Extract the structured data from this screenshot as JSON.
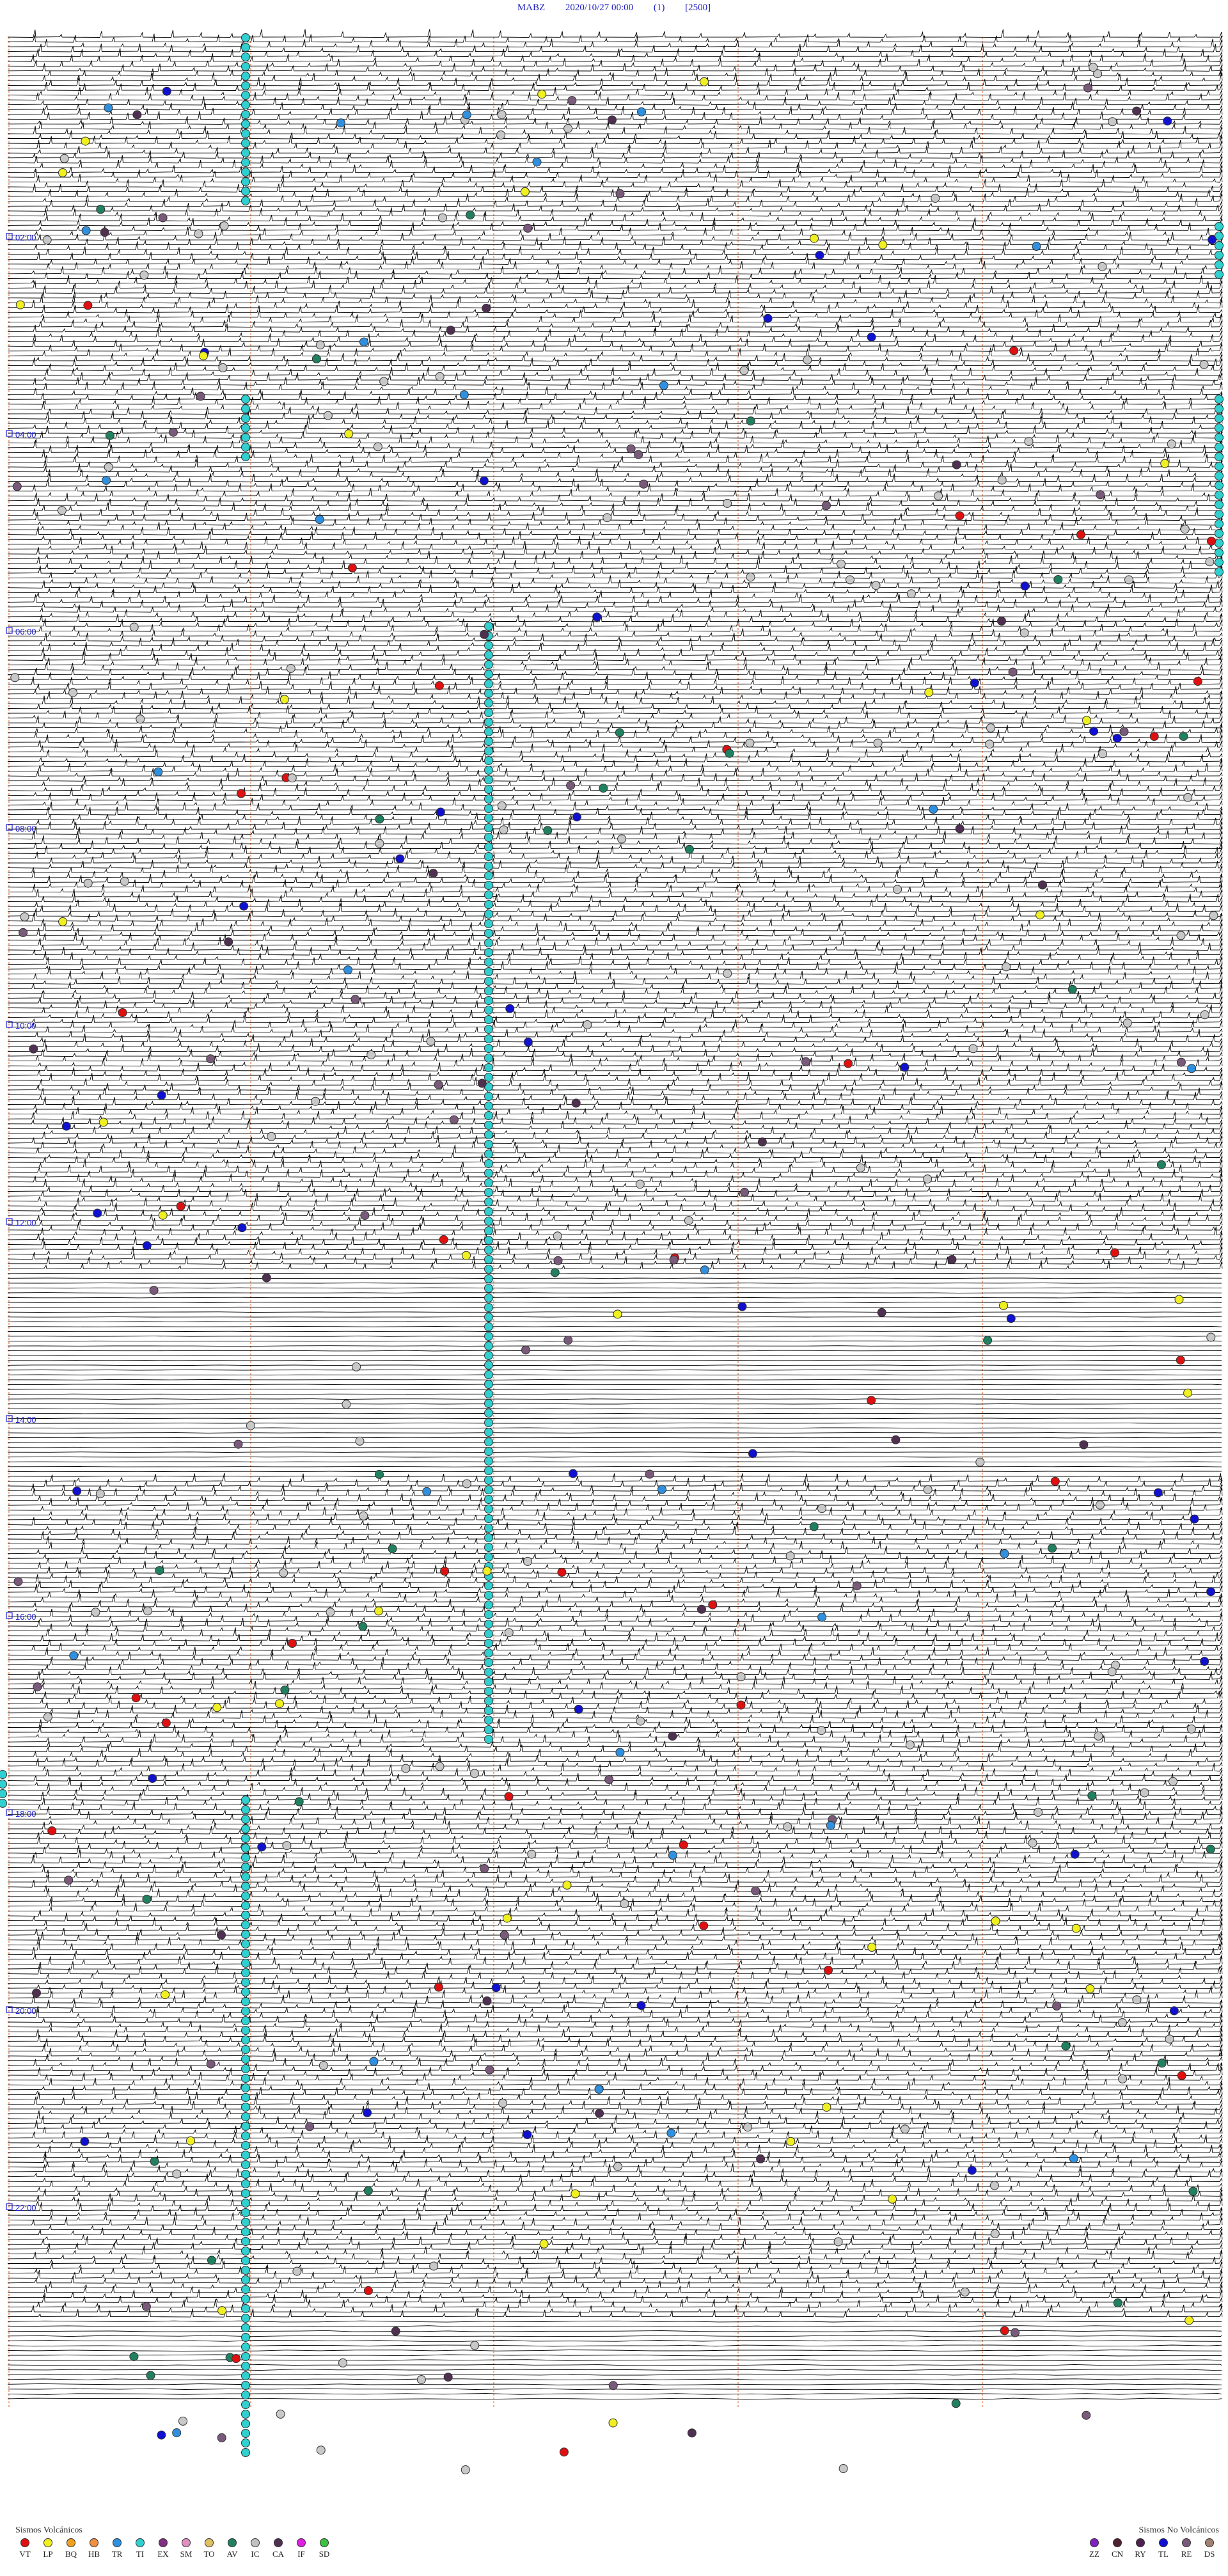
{
  "header": {
    "station": "MABZ",
    "datetime": "2020/10/27 00:00",
    "channel": "(1)",
    "scale": "[2500]"
  },
  "hour_labels": [
    "02:00",
    "04:00",
    "06:00",
    "08:00",
    "10:00",
    "12:00",
    "14:00",
    "16:00",
    "18:00",
    "20:00",
    "22:00"
  ],
  "colors": {
    "trace": "#000000",
    "minute_marker": "#e06020",
    "hour_label": "#1a1ad0",
    "cyan_marker": "#30d0d0",
    "grey_marker": "#c8c8c8"
  },
  "legend_volcanic": {
    "title": "Sismos Volcánicos",
    "items": [
      {
        "code": "VT",
        "color": "#e01010"
      },
      {
        "code": "LP",
        "color": "#f0f020"
      },
      {
        "code": "BQ",
        "color": "#f0a020"
      },
      {
        "code": "HB",
        "color": "#f09040"
      },
      {
        "code": "TR",
        "color": "#3090e0"
      },
      {
        "code": "TI",
        "color": "#30d0d0"
      },
      {
        "code": "EX",
        "color": "#803080"
      },
      {
        "code": "SM",
        "color": "#e090c0"
      },
      {
        "code": "TO",
        "color": "#e0c060"
      },
      {
        "code": "AV",
        "color": "#208060"
      },
      {
        "code": "IC",
        "color": "#c0c0c0"
      },
      {
        "code": "CA",
        "color": "#503050"
      },
      {
        "code": "IF",
        "color": "#e020e0"
      },
      {
        "code": "SD",
        "color": "#40c040"
      }
    ]
  },
  "legend_non_volcanic": {
    "title": "Sismos No Volcánicos",
    "items": [
      {
        "code": "ZZ",
        "color": "#8020c0"
      },
      {
        "code": "CN",
        "color": "#502030"
      },
      {
        "code": "RY",
        "color": "#502050"
      },
      {
        "code": "TL",
        "color": "#1010d0"
      },
      {
        "code": "RE",
        "color": "#7a5a7a"
      },
      {
        "code": "DS",
        "color": "#a08070"
      }
    ]
  }
}
